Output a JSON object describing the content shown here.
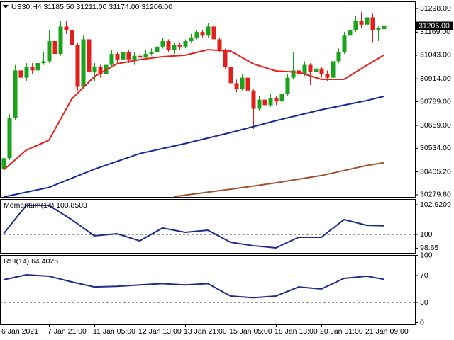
{
  "chart_data": [
    {
      "type": "candlestick",
      "title": "US30,H4  31185.50 31211.00 31174.00 31206.00",
      "categories": [
        "6 Jan 2021",
        null,
        null,
        null,
        null,
        null,
        null,
        null,
        "7 Jan 21:00",
        null,
        null,
        null,
        null,
        null,
        null,
        null,
        "11 Jan 05:00",
        null,
        null,
        null,
        null,
        null,
        null,
        null,
        "12 Jan 13:00",
        null,
        null,
        null,
        null,
        null,
        null,
        null,
        "13 Jan 21:00",
        null,
        null,
        null,
        null,
        null,
        null,
        null,
        "15 Jan 05:00",
        null,
        null,
        null,
        null,
        null,
        null,
        null,
        "18 Jan 13:00",
        null,
        null,
        null,
        null,
        null,
        null,
        null,
        "20 Jan 01:00",
        null,
        null,
        null,
        null,
        null,
        null,
        null,
        "21 Jan 09:00",
        null,
        null,
        null
      ],
      "ohlc": [
        [
          30420,
          30510,
          30290,
          30480
        ],
        [
          30480,
          30720,
          30470,
          30700
        ],
        [
          30700,
          30990,
          30690,
          30960
        ],
        [
          30960,
          30990,
          30900,
          30920
        ],
        [
          30920,
          31000,
          30900,
          30980
        ],
        [
          30980,
          31000,
          30940,
          30960
        ],
        [
          30960,
          31030,
          30950,
          31000
        ],
        [
          31000,
          31060,
          30990,
          31010
        ],
        [
          31010,
          31180,
          31000,
          31120
        ],
        [
          31120,
          31140,
          31030,
          31050
        ],
        [
          31050,
          31230,
          31040,
          31200
        ],
        [
          31200,
          31230,
          31160,
          31180
        ],
        [
          31180,
          31190,
          31060,
          31100
        ],
        [
          31100,
          31110,
          30850,
          30870
        ],
        [
          30870,
          31150,
          30860,
          31130
        ],
        [
          31130,
          31140,
          30930,
          30950
        ],
        [
          30950,
          31000,
          30900,
          30980
        ],
        [
          30980,
          30990,
          30920,
          30940
        ],
        [
          30940,
          31010,
          30780,
          30990
        ],
        [
          30990,
          31070,
          30980,
          31050
        ],
        [
          31050,
          31060,
          31000,
          31020
        ],
        [
          31020,
          31080,
          31010,
          31060
        ],
        [
          31060,
          31070,
          31000,
          31020
        ],
        [
          31020,
          31060,
          30990,
          31040
        ],
        [
          31040,
          31050,
          31000,
          31030
        ],
        [
          31030,
          31070,
          31020,
          31050
        ],
        [
          31050,
          31080,
          31040,
          31060
        ],
        [
          31060,
          31110,
          31050,
          31090
        ],
        [
          31090,
          31140,
          31080,
          31120
        ],
        [
          31120,
          31130,
          31060,
          31070
        ],
        [
          31070,
          31110,
          31050,
          31100
        ],
        [
          31100,
          31110,
          31070,
          31090
        ],
        [
          31090,
          31130,
          31080,
          31120
        ],
        [
          31120,
          31160,
          31110,
          31140
        ],
        [
          31140,
          31180,
          31130,
          31170
        ],
        [
          31170,
          31180,
          31140,
          31150
        ],
        [
          31150,
          31220,
          31140,
          31200
        ],
        [
          31200,
          31210,
          31120,
          31130
        ],
        [
          31130,
          31140,
          31060,
          31070
        ],
        [
          31070,
          31080,
          30970,
          30980
        ],
        [
          30980,
          30990,
          30870,
          30890
        ],
        [
          30890,
          30910,
          30840,
          30860
        ],
        [
          30860,
          30940,
          30850,
          30920
        ],
        [
          30920,
          30930,
          30830,
          30850
        ],
        [
          30850,
          30860,
          30640,
          30750
        ],
        [
          30750,
          30820,
          30740,
          30800
        ],
        [
          30800,
          30810,
          30750,
          30770
        ],
        [
          30770,
          30830,
          30760,
          30810
        ],
        [
          30810,
          30820,
          30770,
          30790
        ],
        [
          30790,
          30850,
          30780,
          30830
        ],
        [
          30830,
          30940,
          30820,
          30920
        ],
        [
          30920,
          31060,
          30910,
          30960
        ],
        [
          30960,
          30970,
          30920,
          30940
        ],
        [
          30940,
          31010,
          30930,
          30990
        ],
        [
          30990,
          31000,
          30880,
          30950
        ],
        [
          30950,
          30990,
          30940,
          30970
        ],
        [
          30970,
          30980,
          30920,
          30940
        ],
        [
          30940,
          30960,
          30900,
          30920
        ],
        [
          30920,
          31030,
          30910,
          31010
        ],
        [
          31010,
          31080,
          31000,
          31060
        ],
        [
          31060,
          31170,
          31050,
          31150
        ],
        [
          31150,
          31200,
          31140,
          31180
        ],
        [
          31180,
          31260,
          31170,
          31230
        ],
        [
          31230,
          31280,
          31190,
          31210
        ],
        [
          31210,
          31290,
          31200,
          31250
        ],
        [
          31250,
          31270,
          31110,
          31180
        ],
        [
          31180,
          31200,
          31120,
          31190
        ],
        [
          31185.5,
          31211,
          31174,
          31206
        ]
      ],
      "up_color": "#1aa31a",
      "down_color": "#e0201b",
      "series": [
        {
          "color": "#e8201b",
          "x": [
            0,
            4,
            8,
            12,
            16,
            20,
            24,
            28,
            32,
            36,
            40,
            44,
            48,
            52,
            56,
            60,
            64,
            67
          ],
          "values": [
            30415,
            30524,
            30578,
            30803,
            30926,
            30996,
            31019,
            31035,
            31043,
            31073,
            31066,
            30996,
            30957,
            30950,
            30911,
            30911,
            30988,
            31043
          ]
        },
        {
          "color": "#14289c",
          "x": [
            0,
            8,
            16,
            24,
            32,
            40,
            48,
            56,
            64,
            67
          ],
          "values": [
            30268,
            30320,
            30420,
            30505,
            30560,
            30620,
            30685,
            30745,
            30795,
            30818
          ]
        },
        {
          "color": "#a0522d",
          "x": [
            30,
            40,
            48,
            56,
            64,
            67
          ],
          "values": [
            30270,
            30310,
            30345,
            30385,
            30440,
            30455
          ]
        }
      ],
      "last_price": {
        "value": 31206,
        "label": "31206.00"
      },
      "ylim": [
        30268,
        31337
      ],
      "yticks": [
        {
          "value": 31298,
          "label": "31298.00"
        },
        {
          "value": 31169,
          "label": "31169.00"
        },
        {
          "value": 31043,
          "label": "31043.00"
        },
        {
          "value": 30914,
          "label": "30914.00"
        },
        {
          "value": 30789,
          "label": "30789.00"
        },
        {
          "value": 30659,
          "label": "30659.00"
        },
        {
          "value": 30534,
          "label": "30534.00"
        },
        {
          "value": 30405.2,
          "label": "30405.20"
        },
        {
          "value": 30279.8,
          "label": "30279.80"
        }
      ]
    },
    {
      "type": "line",
      "title": "Momentum(14) 100.8503",
      "series": [
        {
          "color": "#1e2a8c",
          "x": [
            0,
            4,
            8,
            12,
            16,
            20,
            24,
            28,
            32,
            36,
            40,
            44,
            48,
            52,
            56,
            60,
            64,
            67
          ],
          "values": [
            100.07,
            102.85,
            102.85,
            101.46,
            99.86,
            100.07,
            99.37,
            100.63,
            100.21,
            100.42,
            99.23,
            98.89,
            98.68,
            99.72,
            99.72,
            101.46,
            100.9,
            100.8503
          ]
        }
      ],
      "levels": [
        100
      ],
      "ylim": [
        98.19,
        103.48
      ],
      "yticks": [
        102.9209,
        100,
        98.65
      ]
    },
    {
      "type": "line",
      "title": "RSI(14) 64.4025",
      "series": [
        {
          "color": "#1e2a8c",
          "x": [
            0,
            4,
            8,
            12,
            16,
            20,
            24,
            28,
            32,
            36,
            40,
            44,
            48,
            52,
            56,
            60,
            64,
            67
          ],
          "values": [
            63.7,
            71,
            69,
            60.5,
            53,
            54,
            56,
            58,
            56,
            58,
            39.5,
            37,
            39.5,
            53,
            50,
            65.8,
            69,
            64.4025
          ]
        }
      ],
      "levels": [
        70,
        30
      ],
      "ylim": [
        -2.6,
        100.5
      ],
      "yticks": [
        100,
        70,
        30,
        0
      ]
    }
  ]
}
